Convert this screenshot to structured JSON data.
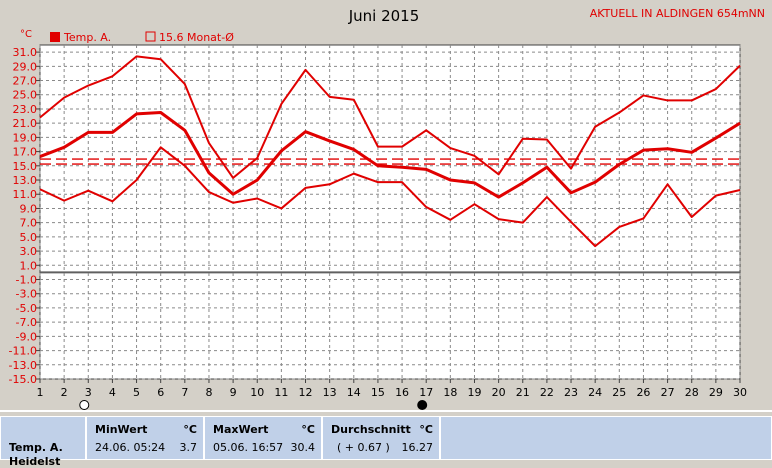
{
  "chart_data": {
    "type": "line",
    "title": "Juni 2015",
    "station": "AKTUELL IN ALDINGEN 654mNN",
    "yunit": "°C",
    "legend": [
      {
        "name": "Temp. A.",
        "color": "#e00000"
      },
      {
        "name": "15.6 Monat-Ø",
        "color": "#e00000"
      }
    ],
    "monthly_avg": 15.6,
    "x": [
      1,
      2,
      3,
      4,
      5,
      6,
      7,
      8,
      9,
      10,
      11,
      12,
      13,
      14,
      15,
      16,
      17,
      18,
      19,
      20,
      21,
      22,
      23,
      24,
      25,
      26,
      27,
      28,
      29,
      30
    ],
    "x_ticks": [
      "1",
      "2",
      "3",
      "4",
      "5",
      "6",
      "7",
      "8",
      "9",
      "10",
      "11",
      "12",
      "13",
      "14",
      "15",
      "16",
      "17",
      "18",
      "19",
      "20",
      "21",
      "22",
      "23",
      "24",
      "25",
      "26",
      "27",
      "28",
      "29",
      "30"
    ],
    "y_ticks": [
      "31.0",
      "29.0",
      "27.0",
      "25.0",
      "23.0",
      "21.0",
      "19.0",
      "17.0",
      "15.0",
      "13.0",
      "11.0",
      "9.0",
      "7.0",
      "5.0",
      "3.0",
      "1.0",
      "-1.0",
      "-3.0",
      "-5.0",
      "-7.0",
      "-9.0",
      "-11.0",
      "-13.0",
      "-15.0"
    ],
    "ylim": [
      -15,
      32
    ],
    "grid": true,
    "series": [
      {
        "name": "max",
        "values": [
          21.8,
          24.6,
          26.3,
          27.6,
          30.4,
          30.0,
          26.5,
          18.2,
          13.3,
          16.1,
          23.7,
          28.5,
          24.7,
          24.3,
          17.7,
          17.7,
          20.0,
          17.5,
          16.4,
          13.8,
          18.8,
          18.7,
          14.6,
          20.5,
          22.5,
          24.9,
          24.2,
          24.2,
          25.8,
          29.1
        ]
      },
      {
        "name": "mean",
        "values": [
          16.3,
          17.6,
          19.7,
          19.7,
          22.3,
          22.5,
          20.0,
          14.0,
          11.0,
          13.0,
          17.1,
          19.8,
          18.5,
          17.3,
          15.0,
          14.8,
          14.5,
          13.0,
          12.6,
          10.6,
          12.6,
          14.8,
          11.2,
          12.7,
          15.2,
          17.2,
          17.4,
          16.9,
          18.9,
          21.0
        ]
      },
      {
        "name": "min",
        "values": [
          11.7,
          10.1,
          11.5,
          10.0,
          13.0,
          17.6,
          15.0,
          11.3,
          9.8,
          10.4,
          9.0,
          11.9,
          12.4,
          13.9,
          12.7,
          12.7,
          9.2,
          7.4,
          9.6,
          7.5,
          7.0,
          10.6,
          7.1,
          3.7,
          6.4,
          7.6,
          12.4,
          7.8,
          10.8,
          11.6
        ]
      }
    ],
    "moon_phases": [
      {
        "day": 3,
        "phase": "full"
      },
      {
        "day": 17,
        "phase": "new"
      }
    ]
  },
  "stats": {
    "row_label": "Temp. A.",
    "row_label_2": "Heidelst",
    "min_header": "MinWert",
    "max_header": "MaxWert",
    "avg_header": "Durchschnitt",
    "unit": "°C",
    "min_date": "24.06.  05:24",
    "min_value": "3.7",
    "max_date": "05.06.  16:57",
    "max_value": "30.4",
    "avg_delta": "( + 0.67 )",
    "avg_value": "16.27"
  }
}
